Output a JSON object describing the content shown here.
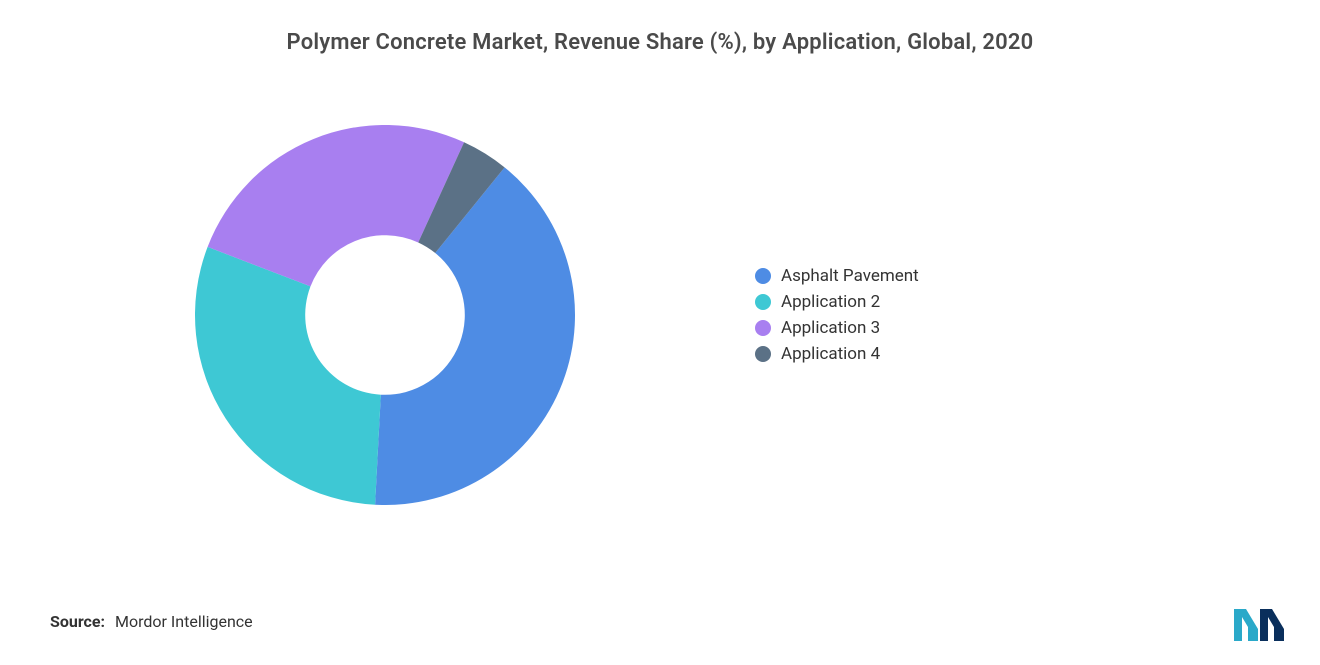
{
  "title": "Polymer Concrete Market, Revenue Share (%), by Application, Global, 2020",
  "title_fontsize": 22,
  "title_color": "#4a4a4a",
  "background_color": "#ffffff",
  "chart": {
    "type": "donut",
    "start_angle_deg": -51,
    "inner_radius_ratio": 0.42,
    "outer_radius": 190,
    "series": [
      {
        "label": "Asphalt Pavement",
        "value": 40,
        "color": "#4e8ce4"
      },
      {
        "label": "Application 2",
        "value": 30,
        "color": "#3ec8d4"
      },
      {
        "label": "Application 3",
        "value": 26,
        "color": "#a87ff0"
      },
      {
        "label": "Application 4",
        "value": 4,
        "color": "#5b7186"
      }
    ],
    "legend_fontsize": 17,
    "legend_text_color": "#333333",
    "legend_swatch_shape": "circle"
  },
  "source": {
    "label": "Source:",
    "value": "Mordor Intelligence",
    "fontsize": 16
  },
  "logo": {
    "bar_colors": [
      "#2aa9c9",
      "#0a2f5c"
    ],
    "name": "mordor-intelligence-logo"
  }
}
